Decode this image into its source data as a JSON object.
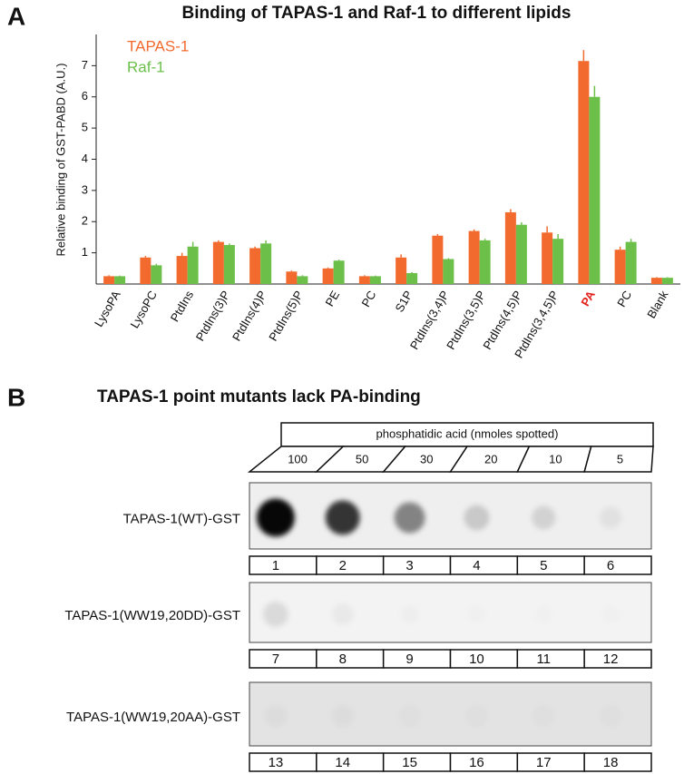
{
  "panel_a_label": "A",
  "chart_data": {
    "type": "bar",
    "title": "Binding of TAPAS-1 and Raf-1 to different lipids",
    "y_label": "Relative binding of GST-PABD (A.U.)",
    "categories": [
      "LysoPA",
      "LysoPC",
      "PtdIns",
      "PtdIns(3)P",
      "PtdIns(4)P",
      "PtdIns(5)P",
      "PE",
      "PC",
      "S1P",
      "PtdIns(3,4)P",
      "PtdIns(3,5)P",
      "PtdIns(4,5)P",
      "PtdIns(3,4,5)P",
      "PA",
      "PC",
      "Blank"
    ],
    "highlight_categories": [
      "PA"
    ],
    "highlight_color": "#e3211c",
    "series": [
      {
        "name": "TAPAS-1",
        "color": "#f26a2e",
        "values": [
          0.25,
          0.85,
          0.9,
          1.35,
          1.15,
          0.4,
          0.5,
          0.25,
          0.85,
          1.55,
          1.7,
          2.3,
          1.65,
          7.15,
          1.1,
          0.2
        ],
        "errors": [
          0.03,
          0.05,
          0.1,
          0.05,
          0.05,
          0.03,
          0.03,
          0.03,
          0.1,
          0.05,
          0.05,
          0.1,
          0.2,
          0.35,
          0.1,
          0.02
        ]
      },
      {
        "name": "Raf-1",
        "color": "#6cc04a",
        "values": [
          0.25,
          0.6,
          1.2,
          1.25,
          1.3,
          0.25,
          0.75,
          0.25,
          0.35,
          0.8,
          1.4,
          1.9,
          1.45,
          6.0,
          1.35,
          0.2
        ],
        "errors": [
          0.02,
          0.05,
          0.15,
          0.05,
          0.1,
          0.03,
          0.03,
          0.02,
          0.03,
          0.03,
          0.05,
          0.08,
          0.15,
          0.35,
          0.1,
          0.02
        ]
      }
    ],
    "ylim": [
      0,
      8
    ],
    "yticks": [
      1,
      2,
      3,
      4,
      5,
      6,
      7
    ],
    "legend": "upper left"
  },
  "panel_b": {
    "label": "B",
    "title": "TAPAS-1 point mutants lack PA-binding",
    "header": "phosphatidic acid (nmoles spotted)",
    "amounts": [
      100,
      50,
      30,
      20,
      10,
      5
    ],
    "rows": [
      {
        "label": "TAPAS-1(WT)-GST",
        "spots": [
          1,
          2,
          3,
          4,
          5,
          6
        ]
      },
      {
        "label": "TAPAS-1(WW19,20DD)-GST",
        "spots": [
          7,
          8,
          9,
          10,
          11,
          12
        ]
      },
      {
        "label": "TAPAS-1(WW19,20AA)-GST",
        "spots": [
          13,
          14,
          15,
          16,
          17,
          18
        ]
      }
    ]
  }
}
